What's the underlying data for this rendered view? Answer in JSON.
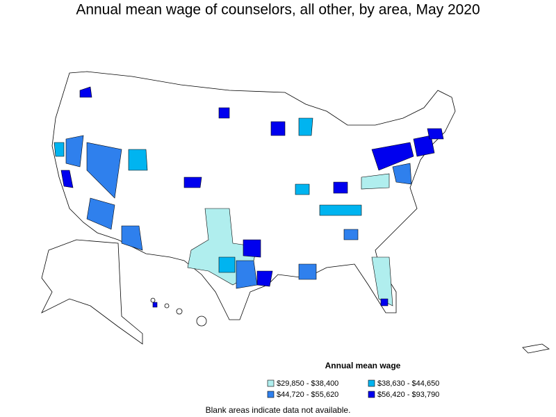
{
  "title": "Annual mean wage of counselors, all other, by area, May 2020",
  "legend": {
    "title": "Annual mean wage",
    "items": [
      {
        "label": "$29,850 - $38,400",
        "color": "#b0eeee"
      },
      {
        "label": "$38,630 - $44,650",
        "color": "#00b4f0"
      },
      {
        "label": "$44,720 - $55,620",
        "color": "#2f80ed"
      },
      {
        "label": "$56,420 - $93,790",
        "color": "#0000ee"
      }
    ]
  },
  "footnote": "Blank areas indicate data not available."
}
